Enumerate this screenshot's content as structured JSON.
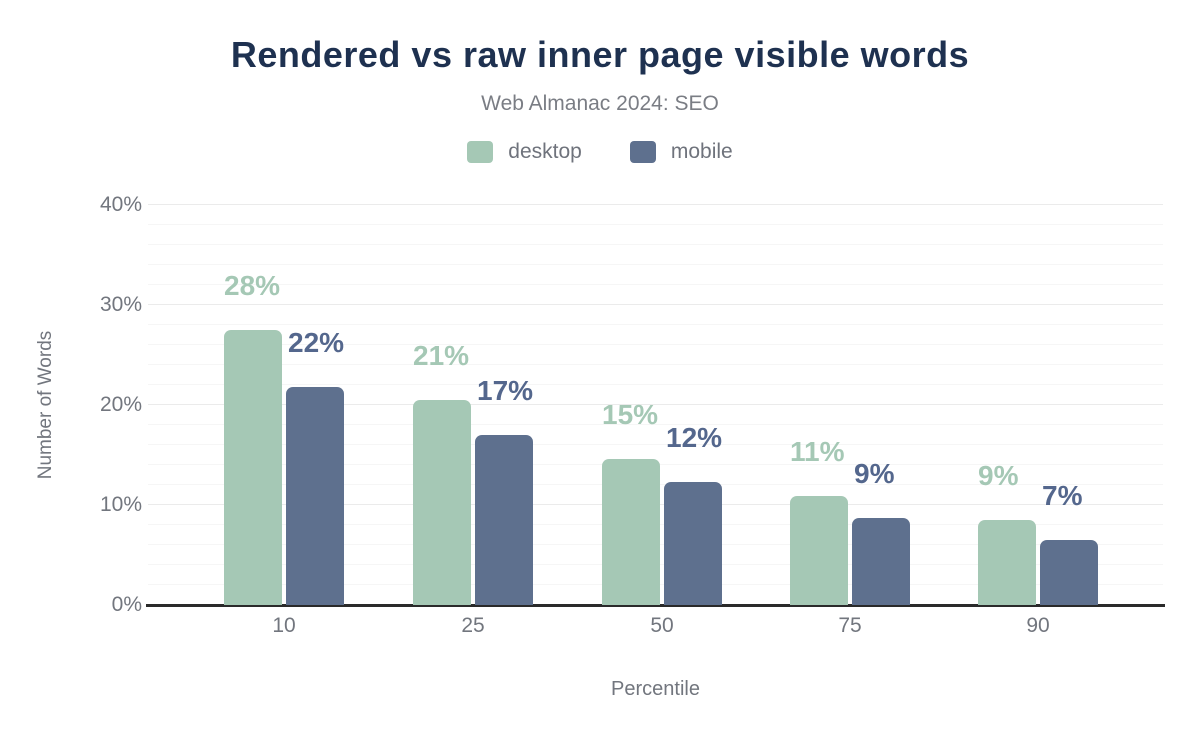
{
  "header": {
    "title": "Rendered vs raw inner page visible words",
    "subtitle": "Web Almanac 2024: SEO"
  },
  "chart_data": {
    "type": "bar",
    "title": "Rendered vs raw inner page visible words",
    "subtitle": "Web Almanac 2024: SEO",
    "categories": [
      "10",
      "25",
      "50",
      "75",
      "90"
    ],
    "series": [
      {
        "name": "desktop",
        "color": "#a5c8b5",
        "label_color": "#a5c8b5",
        "values": [
          27.5,
          20.5,
          14.6,
          10.9,
          8.5
        ],
        "labels": [
          "28%",
          "21%",
          "15%",
          "11%",
          "9%"
        ]
      },
      {
        "name": "mobile",
        "color": "#5e708e",
        "label_color": "#54678d",
        "values": [
          21.8,
          17.0,
          12.3,
          8.7,
          6.5
        ],
        "labels": [
          "22%",
          "17%",
          "12%",
          "9%",
          "7%"
        ]
      }
    ],
    "xlabel": "Percentile",
    "ylabel": "Number of Words",
    "ylim": [
      0,
      40
    ],
    "yticks": [
      "0%",
      "10%",
      "20%",
      "30%",
      "40%"
    ],
    "grid": {
      "major_step": 10,
      "minor_step": 2,
      "legend_position": "top"
    }
  }
}
